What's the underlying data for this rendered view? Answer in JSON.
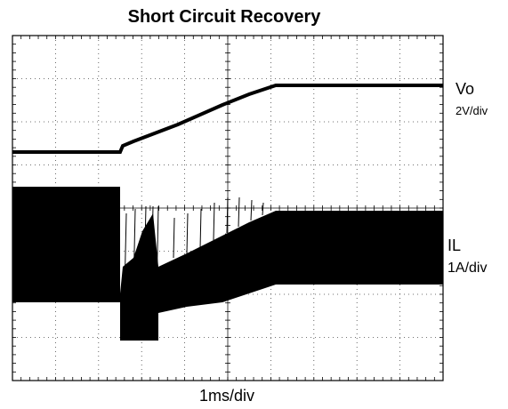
{
  "title": "Short Circuit Recovery",
  "traces": [
    {
      "name": "Vo",
      "scale": "2V/div"
    },
    {
      "name": "IL",
      "scale": "1A/div"
    }
  ],
  "time_scale": "1ms/div"
}
